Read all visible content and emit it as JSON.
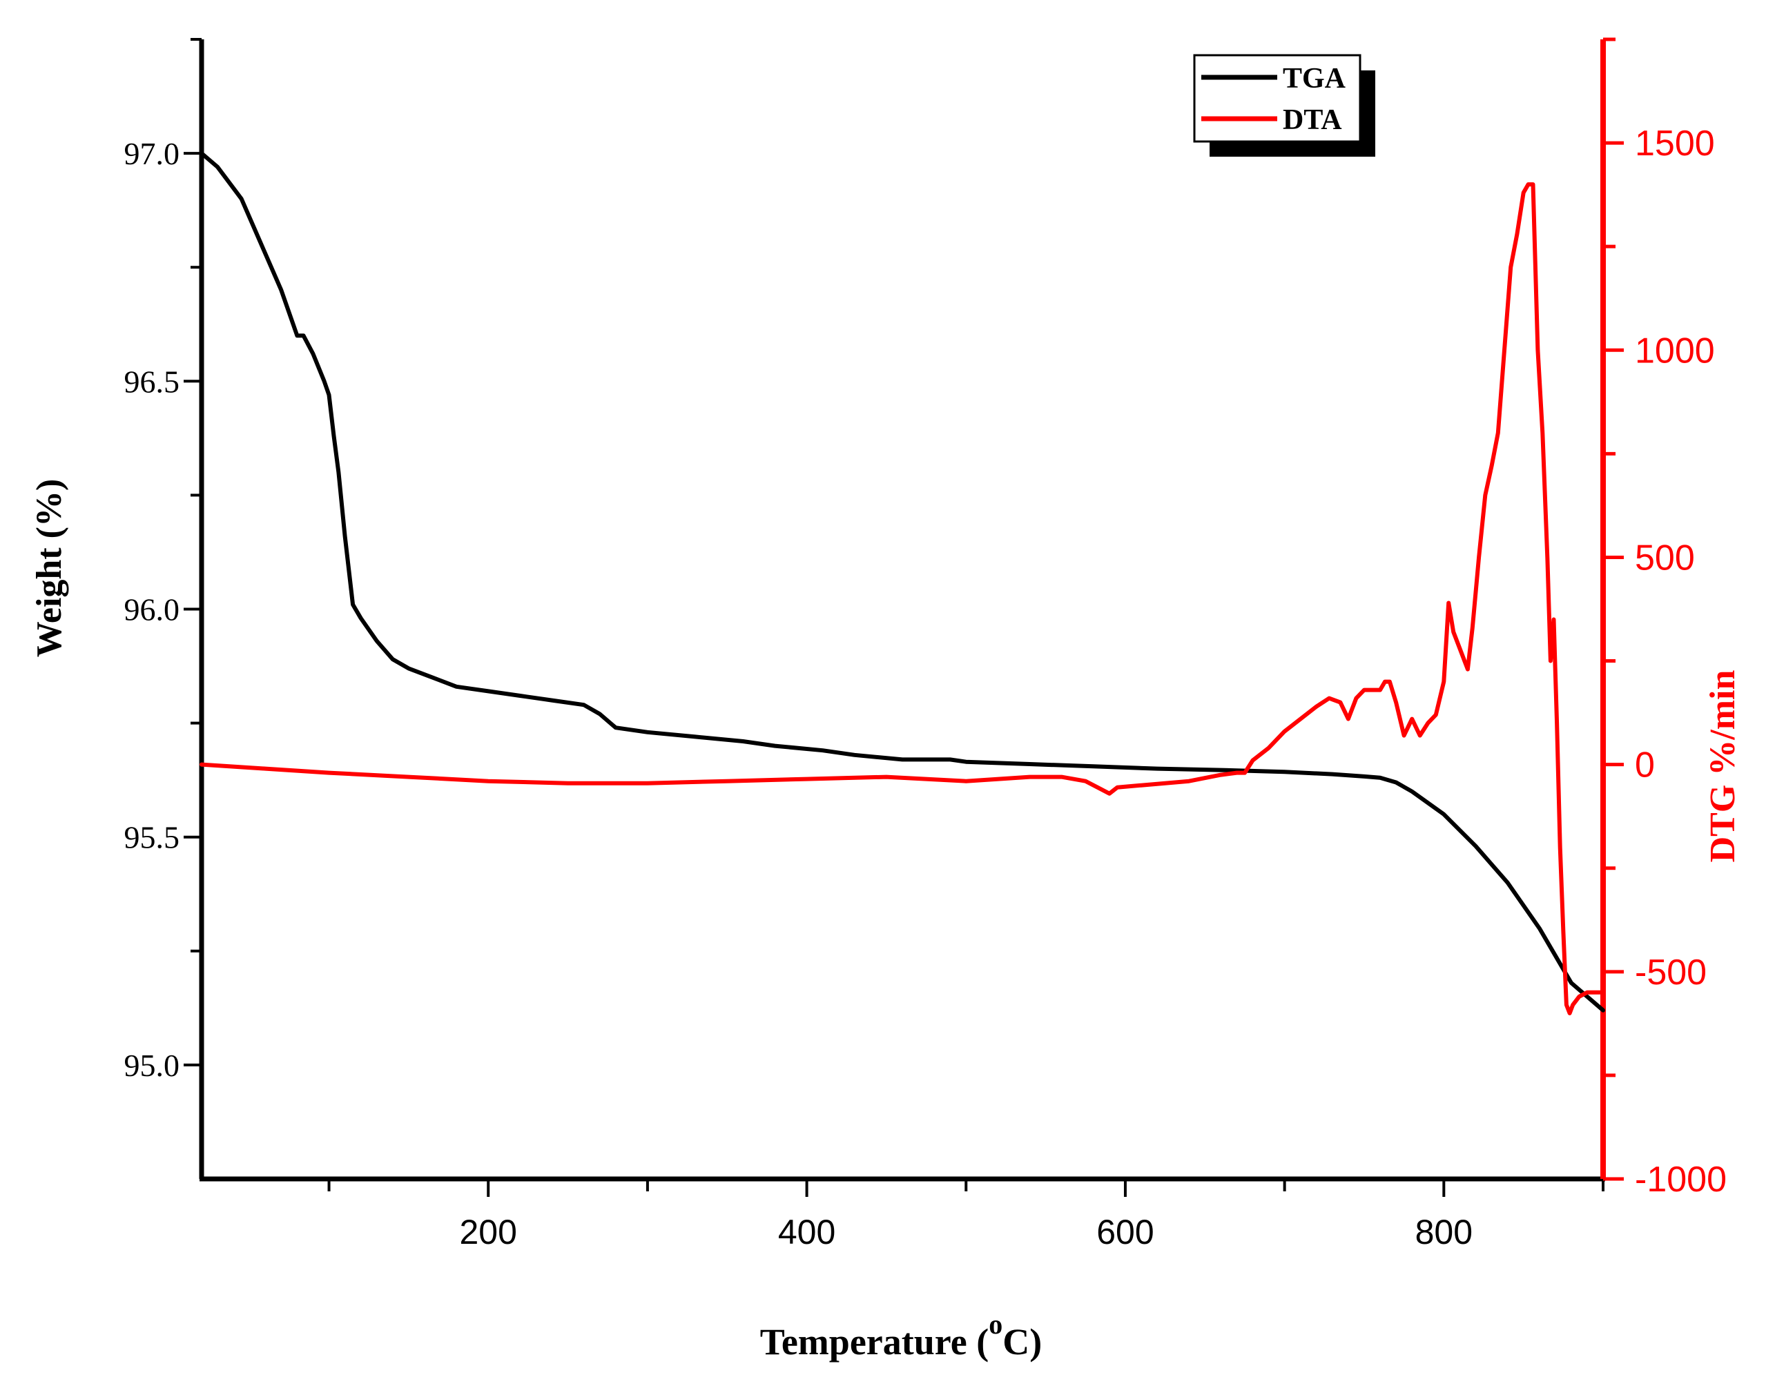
{
  "chart_data": {
    "type": "line",
    "title": "",
    "xlabel": "Temperature (",
    "xlabel_superscript": "o",
    "xlabel_suffix": "C)",
    "ylabel_left": "Weight  (%)",
    "ylabel_right": "DTG %/min",
    "xlim": [
      20,
      900
    ],
    "ylim_left": [
      94.75,
      97.25
    ],
    "ylim_right": [
      -1000,
      1750
    ],
    "x_ticks": [
      200,
      400,
      600,
      800
    ],
    "x_tick_labels": [
      "200",
      "400",
      "600",
      "800"
    ],
    "y_left_ticks": [
      95.0,
      95.5,
      96.0,
      96.5,
      97.0
    ],
    "y_left_tick_labels": [
      "95.0",
      "95.5",
      "96.0",
      "96.5",
      "97.0"
    ],
    "y_right_ticks": [
      -1000,
      -500,
      0,
      500,
      1000,
      1500
    ],
    "y_right_tick_labels": [
      "-1000",
      "-500",
      "0",
      "500",
      "1000",
      "1500"
    ],
    "legend_position": "top-right",
    "colors": {
      "tga": "#000000",
      "dta": "#ff0000",
      "right_axis": "#ff0000"
    },
    "series": [
      {
        "name": "TGA",
        "axis": "left",
        "x": [
          20,
          30,
          45,
          60,
          70,
          78,
          80,
          84,
          90,
          97,
          100,
          103,
          106,
          110,
          115,
          120,
          130,
          140,
          150,
          165,
          180,
          200,
          220,
          240,
          260,
          270,
          280,
          300,
          330,
          360,
          380,
          410,
          430,
          460,
          490,
          500,
          540,
          580,
          620,
          660,
          700,
          730,
          750,
          760,
          770,
          780,
          800,
          820,
          840,
          860,
          880,
          900
        ],
        "values": [
          97.0,
          96.97,
          96.9,
          96.78,
          96.7,
          96.62,
          96.6,
          96.6,
          96.56,
          96.5,
          96.47,
          96.38,
          96.3,
          96.16,
          96.01,
          95.98,
          95.93,
          95.89,
          95.87,
          95.85,
          95.83,
          95.82,
          95.81,
          95.8,
          95.79,
          95.77,
          95.74,
          95.73,
          95.72,
          95.71,
          95.7,
          95.69,
          95.68,
          95.67,
          95.67,
          95.665,
          95.66,
          95.655,
          95.65,
          95.647,
          95.643,
          95.638,
          95.633,
          95.63,
          95.62,
          95.6,
          95.55,
          95.48,
          95.4,
          95.3,
          95.18,
          95.12
        ]
      },
      {
        "name": "DTA",
        "axis": "right",
        "x": [
          20,
          60,
          100,
          150,
          200,
          250,
          300,
          350,
          400,
          450,
          500,
          540,
          560,
          575,
          585,
          590,
          595,
          610,
          640,
          660,
          670,
          675,
          680,
          690,
          700,
          710,
          720,
          728,
          735,
          740,
          745,
          750,
          755,
          760,
          763,
          766,
          770,
          775,
          780,
          785,
          790,
          795,
          800,
          803,
          806,
          810,
          815,
          818,
          822,
          826,
          830,
          834,
          838,
          842,
          846,
          850,
          853,
          856,
          859,
          862,
          865,
          867,
          869,
          871,
          873,
          875,
          877,
          879,
          881,
          885,
          890,
          900
        ],
        "values": [
          0,
          -10,
          -20,
          -30,
          -40,
          -45,
          -45,
          -40,
          -35,
          -30,
          -40,
          -30,
          -30,
          -40,
          -60,
          -70,
          -55,
          -50,
          -40,
          -25,
          -20,
          -20,
          10,
          40,
          80,
          110,
          140,
          160,
          150,
          110,
          160,
          180,
          180,
          180,
          200,
          200,
          150,
          70,
          110,
          70,
          100,
          120,
          200,
          390,
          320,
          280,
          230,
          330,
          500,
          650,
          720,
          800,
          1000,
          1200,
          1280,
          1380,
          1400,
          1400,
          1000,
          800,
          500,
          250,
          350,
          100,
          -200,
          -400,
          -580,
          -600,
          -580,
          -560,
          -550,
          -550
        ]
      }
    ]
  }
}
